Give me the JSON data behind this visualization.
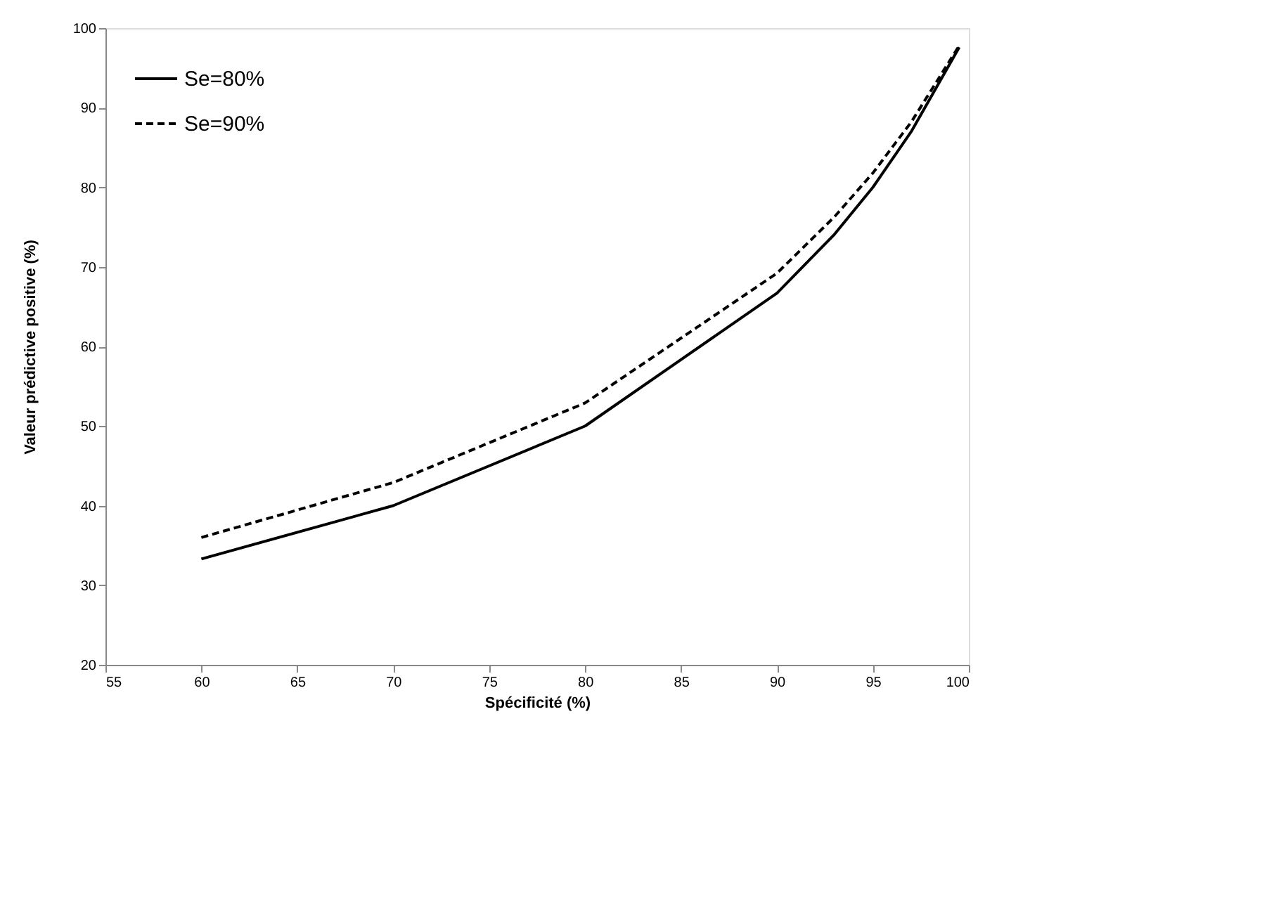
{
  "chart_data": {
    "type": "line",
    "xlabel": "Spécificité (%)",
    "ylabel": "Valeur prédictive positive (%)",
    "x": [
      60,
      70,
      80,
      90,
      93,
      95,
      97,
      99.5
    ],
    "series": [
      {
        "name": "Se=80%",
        "color": "#000000",
        "line_style": "solid",
        "values": [
          33.3,
          40.0,
          50.0,
          66.7,
          74.1,
          80.0,
          87.0,
          97.6
        ]
      },
      {
        "name": "Se=90%",
        "color": "#000000",
        "line_style": "dashed",
        "values": [
          36.0,
          42.9,
          52.9,
          69.2,
          76.3,
          81.8,
          88.2,
          97.8
        ]
      }
    ],
    "xlim": [
      55,
      100
    ],
    "xticks": [
      55,
      60,
      65,
      70,
      75,
      80,
      85,
      90,
      95,
      100
    ],
    "ylim": [
      20,
      100
    ],
    "yticks": [
      20,
      30,
      40,
      50,
      60,
      70,
      80,
      90,
      100
    ],
    "grid": false,
    "legend": "top left",
    "marker": "none"
  }
}
